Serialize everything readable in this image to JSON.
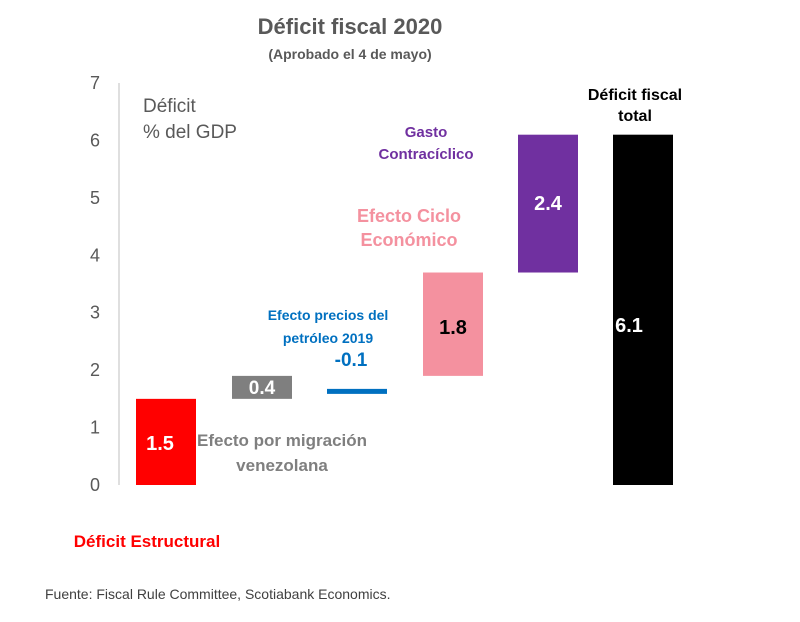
{
  "title": "Déficit fiscal 2020",
  "subtitle": "(Aprobado el 4 de mayo)",
  "source": "Fuente: Fiscal Rule Committee, Scotiabank Economics.",
  "chart_data": {
    "type": "bar",
    "subtype": "waterfall",
    "ylabel": [
      "Déficit",
      "% del GDP"
    ],
    "ylim": [
      0,
      7
    ],
    "yticks": [
      "0",
      "1",
      "2",
      "3",
      "4",
      "5",
      "6",
      "7"
    ],
    "grid": false,
    "legend": "none",
    "bars": [
      {
        "label": [
          "Déficit Estructural"
        ],
        "value_label": "1.5",
        "base": 0,
        "top": 1.5,
        "color": "#ff0000",
        "label_color": "#ff0000",
        "value_color": "#ffffff"
      },
      {
        "label": [
          "Efecto por migración",
          "venezolana"
        ],
        "value_label": "0.4",
        "base": 1.5,
        "top": 1.9,
        "color": "#7f7f7f",
        "label_color": "#7f7f7f",
        "value_color": "#ffffff"
      },
      {
        "label": [
          "Efecto precios del",
          "petróleo 2019"
        ],
        "value_label": "-0.1",
        "base": 1.8,
        "top": 1.9,
        "color": "#0070c0",
        "label_color": "#0070c0",
        "value_color": "#0070c0"
      },
      {
        "label": [
          "Efecto Ciclo",
          "Económico"
        ],
        "value_label": "1.8",
        "base": 1.9,
        "top": 3.7,
        "color": "#f4919f",
        "label_color": "#f4919f",
        "value_color": "#000000"
      },
      {
        "label": [
          "Gasto",
          "Contracíclico"
        ],
        "value_label": "2.4",
        "base": 3.7,
        "top": 6.1,
        "color": "#7030a0",
        "label_color": "#7030a0",
        "value_color": "#ffffff"
      },
      {
        "label": [
          "Déficit fiscal",
          "total"
        ],
        "value_label": "6.1",
        "base": 0,
        "top": 6.1,
        "color": "#000000",
        "label_color": "#000000",
        "value_color": "#ffffff"
      }
    ]
  }
}
